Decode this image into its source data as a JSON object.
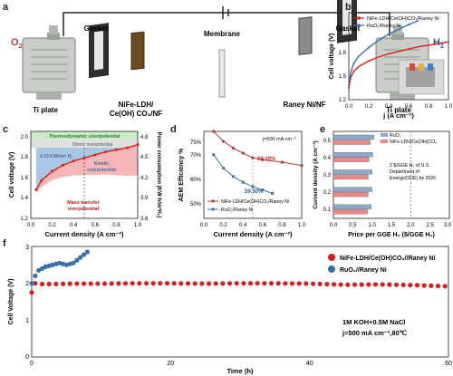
{
  "panel_a": {
    "label": "a",
    "o2": "O",
    "o2_sub": "2",
    "h2": "H",
    "h2_sub": "2",
    "membrane": "Membrane",
    "gasket_left": "Gasket",
    "gasket_right": "Gasket",
    "ti_left": "Ti plate",
    "ti_right": "Ti plate",
    "anode_line1": "NiFe-LDH/",
    "anode_line2": "Ce(OH) CO₃/NF",
    "cathode": "Raney Ni/NF"
  },
  "panel_b": {
    "label": "b",
    "legend": [
      "NiFe-LDH/Ce(OH)CO₃/Raney Ni",
      "RuO₂/Raney Ni"
    ],
    "ylabel": "Cell voltage  (V)",
    "xlabel": "j (A cm⁻²)",
    "yticks": [
      "1.2",
      "1.5",
      "1.8",
      "2.1"
    ],
    "xticks": [
      "0.0",
      "0.2",
      "0.4",
      "0.6",
      "0.8",
      "1.0"
    ]
  },
  "panel_c": {
    "label": "c",
    "thermo": "Thermodynamic overpotential",
    "ohmic": "Ohmic overpotential",
    "kinetic_1": "Kinetic",
    "kinetic_2": "overpotential",
    "mass_1": "Mass transfer",
    "mass_2": "overpotential",
    "annotation": "4.29 KWh/m³ H₂",
    "ylabel": "Cell voltage  (V)",
    "y2label": "Power consumption (KW·h/m³H₂)",
    "xlabel": "Current density  (A cm⁻²)",
    "yticks": [
      "1.2",
      "1.4",
      "1.6",
      "1.8",
      "2.0"
    ],
    "y2ticks": [
      "3.6",
      "3.9",
      "4.2",
      "4.5",
      "4.8"
    ],
    "xticks": [
      "0.0",
      "0.2",
      "0.4",
      "0.6",
      "0.8",
      "1.0"
    ]
  },
  "panel_d": {
    "label": "d",
    "annotation": "j=500 mA cm⁻²",
    "val1": "68.09%",
    "val2": "59.50%",
    "legend": [
      "NiFe-LDH/Ce(OH)CO₃/Raney Ni",
      "RuO₂/Raney Ni"
    ],
    "ylabel": "AEM Efficiency  %",
    "xlabel": "Current density  (A cm⁻²)",
    "yticks": [
      "50%",
      "60%",
      "70%",
      "75%"
    ],
    "xticks": [
      "0.0",
      "0.2",
      "0.4",
      "0.6",
      "0.8",
      "1.0"
    ]
  },
  "panel_e": {
    "label": "e",
    "legend": [
      "RuO₂",
      "NiFe-LDH/Ce(OH)CO₃"
    ],
    "note": [
      "2 $/GGE H₂ of U.S.",
      "Department of",
      "Energy(DOE) by 2026"
    ],
    "ylabel": "Current density (A cm⁻²)",
    "xlabel": "Price per GGE H₂ ($/GGE H₂)",
    "yticks": [
      "0.5",
      "0.4",
      "0.3",
      "0.2",
      "0.1"
    ],
    "xticks": [
      "0.0",
      "0.5",
      "1.0",
      "1.5",
      "2.0",
      "2.5",
      "3.0"
    ]
  },
  "panel_f": {
    "label": "f",
    "legend": [
      "NiFe-LDH/Ce(OH)CO₃//Raney Ni",
      "RuO₂//Raney Ni"
    ],
    "cond1": "1M KOH+0.5M NaCl",
    "cond2": "j=500 mA cm⁻²,80℃",
    "ylabel": "Cell Voltage (V)",
    "xlabel": "Time (h)",
    "yticks": [
      "0",
      "1",
      "2",
      "3"
    ],
    "xticks": [
      "0",
      "20",
      "40",
      "60"
    ]
  },
  "colors": {
    "red": "#d42020",
    "blue": "#3a6fa8",
    "teal_fill": "#8ecfd0",
    "green_fill": "#c9ecc4",
    "blue_fill": "#a9c6e3",
    "pink_fill": "#f4b6b6"
  },
  "chart_data": [
    {
      "type": "line",
      "panel": "b",
      "xlabel": "j (A cm⁻²)",
      "ylabel": "Cell voltage (V)",
      "ylim": [
        1.2,
        2.3
      ],
      "xlim": [
        0,
        1.0
      ],
      "series": [
        {
          "name": "NiFe-LDH/Ce(OH)CO₃/Raney Ni",
          "x": [
            0.0,
            0.02,
            0.05,
            0.1,
            0.2,
            0.3,
            0.4,
            0.5,
            0.6,
            0.7,
            0.8,
            0.9,
            1.0
          ],
          "y": [
            1.35,
            1.48,
            1.56,
            1.62,
            1.69,
            1.74,
            1.78,
            1.81,
            1.84,
            1.87,
            1.89,
            1.91,
            1.93
          ]
        },
        {
          "name": "RuO₂/Raney Ni",
          "x": [
            0.0,
            0.02,
            0.05,
            0.1,
            0.2,
            0.3,
            0.4,
            0.5,
            0.6,
            0.7
          ],
          "y": [
            1.38,
            1.55,
            1.66,
            1.75,
            1.86,
            1.95,
            2.03,
            2.09,
            2.15,
            2.2
          ]
        }
      ]
    },
    {
      "type": "area",
      "panel": "c",
      "xlabel": "Current density (A cm⁻²)",
      "ylabel": "Cell voltage (V)",
      "ylim": [
        1.2,
        2.05
      ],
      "xlim": [
        0,
        1.0
      ],
      "series": [
        {
          "name": "",
          "x": [
            0.05,
            0.1,
            0.2,
            0.3,
            0.4,
            0.5,
            0.6,
            0.7,
            0.8,
            0.9,
            1.0
          ],
          "y": [
            1.48,
            1.57,
            1.66,
            1.72,
            1.76,
            1.79,
            1.82,
            1.85,
            1.87,
            1.89,
            1.92
          ]
        }
      ],
      "annotation_point": {
        "x": 0.5,
        "y2": 4.29
      }
    },
    {
      "type": "line",
      "panel": "d",
      "xlabel": "Current density (A cm⁻²)",
      "ylabel": "AEM Efficiency %",
      "ylim": [
        50,
        76
      ],
      "xlim": [
        0,
        1.0
      ],
      "series": [
        {
          "name": "NiFe-LDH/Ce(OH)CO₃/Raney Ni",
          "x": [
            0.1,
            0.2,
            0.3,
            0.4,
            0.5,
            0.6,
            0.8,
            1.0
          ],
          "y": [
            76,
            73,
            71,
            69.5,
            68.09,
            67.5,
            66.8,
            65.8
          ]
        },
        {
          "name": "RuO₂/Raney Ni",
          "x": [
            0.1,
            0.2,
            0.3,
            0.4,
            0.5,
            0.6,
            0.7
          ],
          "y": [
            69,
            65,
            62.5,
            60.8,
            59.5,
            58.5,
            57.5
          ]
        }
      ]
    },
    {
      "type": "bar",
      "panel": "e",
      "orientation": "horizontal",
      "xlabel": "Price per GGE H₂ ($/GGE H₂)",
      "ylabel": "Current density (A cm⁻²)",
      "xlim": [
        0,
        3.0
      ],
      "categories": [
        "0.5",
        "0.4",
        "0.3",
        "0.2",
        "0.1"
      ],
      "series": [
        {
          "name": "RuO₂",
          "values": [
            1.05,
            1.02,
            1.0,
            1.0,
            0.98
          ]
        },
        {
          "name": "NiFe-LDH/Ce(OH)CO₃",
          "values": [
            0.95,
            0.92,
            0.9,
            0.9,
            0.88
          ]
        }
      ],
      "reference_line": 2.0
    },
    {
      "type": "scatter",
      "panel": "f",
      "xlabel": "Time (h)",
      "ylabel": "Cell Voltage (V)",
      "ylim": [
        0,
        3
      ],
      "xlim": [
        0,
        60
      ],
      "series": [
        {
          "name": "NiFe-LDH/Ce(OH)CO₃//Raney Ni",
          "x": [
            0,
            0.5,
            1,
            3,
            6,
            10,
            15,
            20,
            25,
            30,
            35,
            40,
            42,
            45,
            50,
            55,
            58,
            60
          ],
          "y": [
            1.75,
            2.0,
            1.98,
            1.98,
            1.99,
            1.99,
            2.0,
            2.0,
            1.99,
            2.0,
            2.0,
            1.99,
            1.98,
            1.96,
            1.97,
            1.95,
            1.93,
            1.92
          ]
        },
        {
          "name": "RuO₂//Raney Ni",
          "x": [
            0,
            0.5,
            1,
            2,
            3,
            4,
            5,
            6,
            7,
            8
          ],
          "y": [
            2.0,
            2.2,
            2.35,
            2.45,
            2.5,
            2.55,
            2.5,
            2.55,
            2.7,
            2.85
          ]
        }
      ]
    }
  ]
}
